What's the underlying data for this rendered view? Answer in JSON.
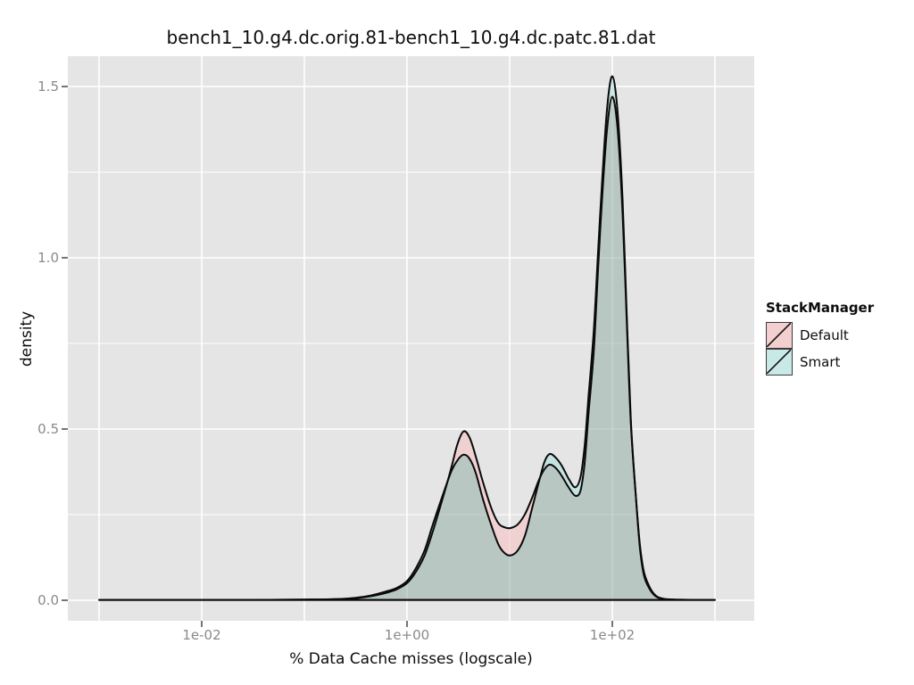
{
  "colors": {
    "background": "#FFFFFF",
    "panel_bg": "#E5E5E5",
    "gridline": "#FFFFFF",
    "tick_mark": "#3C3C3C",
    "tick_label": "#8A8A8A",
    "text": "#0D0D0D"
  },
  "legend": {
    "title": "StackManager",
    "entries": [
      {
        "label": "Default",
        "color": "#F3CFCF"
      },
      {
        "label": "Smart",
        "color": "#C8E9E6"
      }
    ]
  },
  "chart_data": {
    "type": "area",
    "subtype": "density",
    "title": "bench1_10.g4.dc.orig.81-bench1_10.g4.dc.patc.81.dat",
    "xlabel": "% Data Cache misses (logscale)",
    "ylabel": "density",
    "x_scale": "log10",
    "x_domain_log10": [
      -3.3,
      3.38
    ],
    "y_domain": [
      -0.06,
      1.588
    ],
    "x_major_gridlines_log10": [
      -3,
      -2,
      -1,
      0,
      1,
      2,
      3
    ],
    "x_ticks": [
      {
        "v": -2,
        "label": "1e-02"
      },
      {
        "v": 0,
        "label": "1e+00"
      },
      {
        "v": 2,
        "label": "1e+02"
      }
    ],
    "y_ticks": [
      {
        "v": 0,
        "label": "0.0"
      },
      {
        "v": 0.5,
        "label": "0.5"
      },
      {
        "v": 1,
        "label": "1.0"
      },
      {
        "v": 1.5,
        "label": "1.5"
      }
    ],
    "y_minor_gridlines": [
      0.25,
      0.75,
      1.25
    ],
    "legend_position": "right",
    "grid": true,
    "x_log10": [
      -3.0,
      -2.5,
      -2.0,
      -1.5,
      -1.0,
      -0.7,
      -0.5,
      -0.35,
      -0.2,
      -0.1,
      0.0,
      0.08,
      0.17,
      0.25,
      0.34,
      0.43,
      0.49,
      0.55,
      0.61,
      0.67,
      0.74,
      0.82,
      0.89,
      0.95,
      1.01,
      1.08,
      1.15,
      1.22,
      1.29,
      1.34,
      1.39,
      1.45,
      1.51,
      1.58,
      1.64,
      1.69,
      1.73,
      1.77,
      1.82,
      1.86,
      1.9,
      1.95,
      2.0,
      2.05,
      2.1,
      2.14,
      2.18,
      2.23,
      2.27,
      2.31,
      2.37,
      2.43,
      2.51,
      2.64,
      2.8,
      3.0
    ],
    "series": [
      {
        "name": "Default",
        "fill": "#F0D1D1",
        "values": [
          0.001,
          0.001,
          0.001,
          0.001,
          0.002,
          0.003,
          0.006,
          0.012,
          0.022,
          0.032,
          0.05,
          0.08,
          0.13,
          0.2,
          0.29,
          0.385,
          0.455,
          0.493,
          0.475,
          0.42,
          0.345,
          0.27,
          0.225,
          0.213,
          0.211,
          0.222,
          0.252,
          0.3,
          0.355,
          0.383,
          0.396,
          0.386,
          0.362,
          0.327,
          0.305,
          0.32,
          0.4,
          0.55,
          0.73,
          0.96,
          1.17,
          1.38,
          1.47,
          1.38,
          1.13,
          0.82,
          0.52,
          0.3,
          0.16,
          0.08,
          0.035,
          0.012,
          0.004,
          0.002,
          0.001,
          0.001
        ]
      },
      {
        "name": "Smart",
        "fill": "#C5E4E1",
        "values": [
          0.001,
          0.001,
          0.001,
          0.001,
          0.002,
          0.003,
          0.007,
          0.014,
          0.026,
          0.036,
          0.056,
          0.09,
          0.145,
          0.22,
          0.3,
          0.375,
          0.408,
          0.425,
          0.413,
          0.372,
          0.295,
          0.22,
          0.163,
          0.138,
          0.131,
          0.146,
          0.19,
          0.27,
          0.352,
          0.405,
          0.427,
          0.416,
          0.392,
          0.352,
          0.33,
          0.36,
          0.45,
          0.6,
          0.79,
          1.01,
          1.22,
          1.44,
          1.53,
          1.43,
          1.17,
          0.84,
          0.53,
          0.3,
          0.15,
          0.07,
          0.03,
          0.01,
          0.003,
          0.001,
          0.001,
          0.001
        ]
      }
    ],
    "overlap_fill": "#B9C7C3",
    "outline_color": "#0A0A0A"
  }
}
